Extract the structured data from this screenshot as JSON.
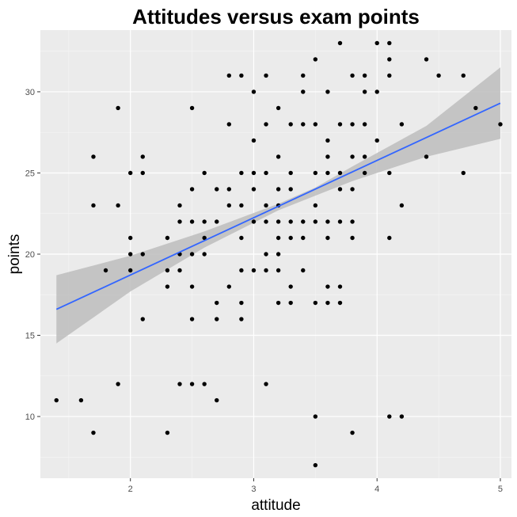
{
  "chart_data": {
    "type": "scatter",
    "title": "Attitudes versus exam points",
    "xlabel": "attitude",
    "ylabel": "points",
    "xlim": [
      1.27,
      5.09
    ],
    "ylim": [
      6.2,
      33.8
    ],
    "x_ticks": [
      2,
      3,
      4,
      5
    ],
    "y_ticks": [
      10,
      15,
      20,
      25,
      30
    ],
    "x_tick_labels": [
      "2",
      "3",
      "4",
      "5"
    ],
    "y_tick_labels": [
      "10",
      "15",
      "20",
      "25",
      "30"
    ],
    "grid": true,
    "legend": "none",
    "colors": {
      "panel": "#ebebeb",
      "grid_major": "#ffffff",
      "point": "#000000",
      "fit_line": "#3366ff",
      "ribbon": "#bdbdbd"
    },
    "points": [
      [
        1.4,
        11
      ],
      [
        1.6,
        11
      ],
      [
        1.7,
        9
      ],
      [
        1.7,
        23
      ],
      [
        1.7,
        26
      ],
      [
        1.8,
        19
      ],
      [
        1.9,
        12
      ],
      [
        1.9,
        23
      ],
      [
        1.9,
        29
      ],
      [
        2.0,
        19
      ],
      [
        2.0,
        20
      ],
      [
        2.0,
        21
      ],
      [
        2.0,
        25
      ],
      [
        2.1,
        16
      ],
      [
        2.1,
        20
      ],
      [
        2.1,
        25
      ],
      [
        2.1,
        26
      ],
      [
        2.3,
        9
      ],
      [
        2.3,
        18
      ],
      [
        2.3,
        19
      ],
      [
        2.3,
        21
      ],
      [
        2.4,
        12
      ],
      [
        2.4,
        19
      ],
      [
        2.4,
        20
      ],
      [
        2.4,
        22
      ],
      [
        2.4,
        23
      ],
      [
        2.5,
        12
      ],
      [
        2.5,
        16
      ],
      [
        2.5,
        18
      ],
      [
        2.5,
        20
      ],
      [
        2.5,
        22
      ],
      [
        2.5,
        24
      ],
      [
        2.5,
        29
      ],
      [
        2.6,
        12
      ],
      [
        2.6,
        20
      ],
      [
        2.6,
        21
      ],
      [
        2.6,
        22
      ],
      [
        2.6,
        25
      ],
      [
        2.7,
        11
      ],
      [
        2.7,
        16
      ],
      [
        2.7,
        17
      ],
      [
        2.7,
        22
      ],
      [
        2.7,
        24
      ],
      [
        2.8,
        18
      ],
      [
        2.8,
        23
      ],
      [
        2.8,
        24
      ],
      [
        2.8,
        28
      ],
      [
        2.8,
        31
      ],
      [
        2.9,
        16
      ],
      [
        2.9,
        17
      ],
      [
        2.9,
        19
      ],
      [
        2.9,
        21
      ],
      [
        2.9,
        23
      ],
      [
        2.9,
        25
      ],
      [
        2.9,
        31
      ],
      [
        3.0,
        19
      ],
      [
        3.0,
        22
      ],
      [
        3.0,
        24
      ],
      [
        3.0,
        25
      ],
      [
        3.0,
        27
      ],
      [
        3.0,
        30
      ],
      [
        3.1,
        12
      ],
      [
        3.1,
        19
      ],
      [
        3.1,
        20
      ],
      [
        3.1,
        22
      ],
      [
        3.1,
        23
      ],
      [
        3.1,
        25
      ],
      [
        3.1,
        28
      ],
      [
        3.1,
        31
      ],
      [
        3.2,
        17
      ],
      [
        3.2,
        19
      ],
      [
        3.2,
        20
      ],
      [
        3.2,
        21
      ],
      [
        3.2,
        22
      ],
      [
        3.2,
        23
      ],
      [
        3.2,
        24
      ],
      [
        3.2,
        26
      ],
      [
        3.2,
        29
      ],
      [
        3.3,
        17
      ],
      [
        3.3,
        18
      ],
      [
        3.3,
        21
      ],
      [
        3.3,
        22
      ],
      [
        3.3,
        24
      ],
      [
        3.3,
        25
      ],
      [
        3.3,
        28
      ],
      [
        3.4,
        19
      ],
      [
        3.4,
        21
      ],
      [
        3.4,
        22
      ],
      [
        3.4,
        28
      ],
      [
        3.4,
        30
      ],
      [
        3.4,
        31
      ],
      [
        3.5,
        7
      ],
      [
        3.5,
        10
      ],
      [
        3.5,
        17
      ],
      [
        3.5,
        22
      ],
      [
        3.5,
        23
      ],
      [
        3.5,
        25
      ],
      [
        3.5,
        28
      ],
      [
        3.5,
        32
      ],
      [
        3.6,
        17
      ],
      [
        3.6,
        18
      ],
      [
        3.6,
        21
      ],
      [
        3.6,
        22
      ],
      [
        3.6,
        25
      ],
      [
        3.6,
        26
      ],
      [
        3.6,
        27
      ],
      [
        3.6,
        30
      ],
      [
        3.7,
        17
      ],
      [
        3.7,
        18
      ],
      [
        3.7,
        22
      ],
      [
        3.7,
        24
      ],
      [
        3.7,
        25
      ],
      [
        3.7,
        28
      ],
      [
        3.7,
        33
      ],
      [
        3.8,
        9
      ],
      [
        3.8,
        21
      ],
      [
        3.8,
        22
      ],
      [
        3.8,
        24
      ],
      [
        3.8,
        26
      ],
      [
        3.8,
        28
      ],
      [
        3.8,
        31
      ],
      [
        3.9,
        25
      ],
      [
        3.9,
        26
      ],
      [
        3.9,
        28
      ],
      [
        3.9,
        30
      ],
      [
        3.9,
        31
      ],
      [
        4.0,
        27
      ],
      [
        4.0,
        30
      ],
      [
        4.0,
        33
      ],
      [
        4.1,
        10
      ],
      [
        4.1,
        21
      ],
      [
        4.1,
        25
      ],
      [
        4.1,
        31
      ],
      [
        4.1,
        32
      ],
      [
        4.1,
        33
      ],
      [
        4.2,
        10
      ],
      [
        4.2,
        23
      ],
      [
        4.2,
        28
      ],
      [
        4.4,
        26
      ],
      [
        4.4,
        32
      ],
      [
        4.5,
        31
      ],
      [
        4.7,
        25
      ],
      [
        4.7,
        31
      ],
      [
        4.8,
        29
      ],
      [
        5.0,
        28
      ]
    ],
    "fit_line": {
      "method": "lm",
      "x": [
        1.4,
        5.0
      ],
      "y": [
        16.6,
        29.3
      ]
    },
    "confidence_band": {
      "x": [
        1.4,
        2.0,
        2.6,
        3.2,
        3.5,
        3.8,
        4.4,
        5.0
      ],
      "lower": [
        14.5,
        17.7,
        20.4,
        22.7,
        23.6,
        24.5,
        26.0,
        27.1
      ],
      "upper": [
        18.7,
        19.9,
        21.4,
        23.1,
        24.1,
        25.4,
        27.9,
        31.5
      ]
    }
  }
}
